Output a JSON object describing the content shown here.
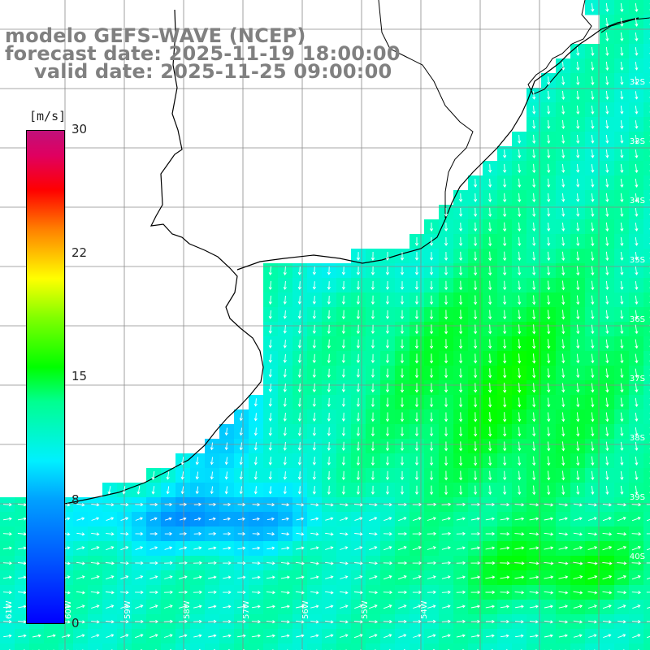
{
  "title": {
    "line1": "modelo GEFS-WAVE (NCEP)",
    "line2": "forecast date: 2025-11-19 18:00:00",
    "line3": "valid date: 2025-11-25 09:00:00"
  },
  "colorbar": {
    "units": "[m/s]",
    "ticks": [
      "30",
      "22",
      "15",
      "8",
      "0"
    ],
    "tick_values": [
      30,
      22,
      15,
      8,
      0
    ],
    "range": [
      0,
      30
    ]
  },
  "map": {
    "lat_labels": [
      "32S",
      "33S",
      "34S",
      "35S",
      "36S",
      "37S",
      "38S",
      "39S",
      "40S"
    ],
    "lon_labels": [
      "61W",
      "60W",
      "59W",
      "58W",
      "57W",
      "56W",
      "55W",
      "54W"
    ],
    "land_color": "#ffffff",
    "grid_color": "#8a8a8a",
    "arrow_color": "#ffffff"
  }
}
